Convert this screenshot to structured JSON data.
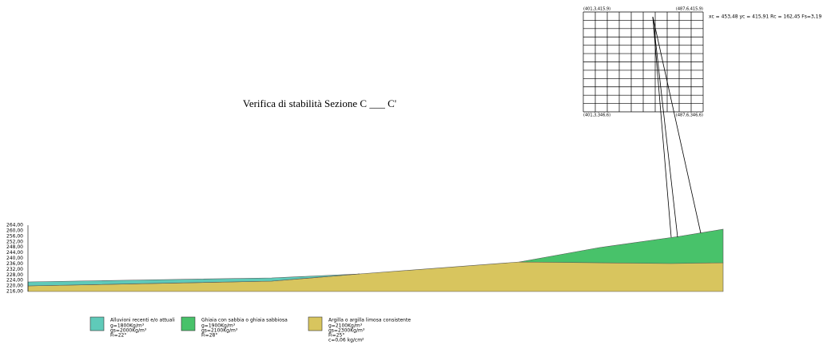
{
  "title": "Verifica di stabilità Sezione C ___ C'",
  "grid": {
    "corners": [
      "(401,3,415,9)",
      "(487,6,415,9)",
      "(401,3,346,6)",
      "(487,6,346,6)"
    ]
  },
  "result": "xc = 453,48 yc = 415,91 Rc = 162,45 Fs=3,19",
  "axis": {
    "labels": [
      "264,00",
      "260,00",
      "256,00",
      "252,00",
      "248,00",
      "244,00",
      "240,00",
      "236,00",
      "232,00",
      "228,00",
      "224,00",
      "220,00",
      "216,00"
    ]
  },
  "legend": [
    {
      "name": "Alluvioni recenti e/o attuali",
      "lines": [
        "g=1800Kg/m³",
        "gs=2000Kg/m³",
        "Fi=22°"
      ]
    },
    {
      "name": "Ghiaia con sabbia o ghiaia sabbiosa",
      "lines": [
        "g=1900Kg/m³",
        "gs=2100Kg/m³",
        "Fi=28°"
      ]
    },
    {
      "name": "Argilla o argilla limosa consistente",
      "lines": [
        "g=2100Kg/m³",
        "gs=2300Kg/m³",
        "Fi=25°",
        "c=0,06 kg/cm²"
      ]
    }
  ]
}
